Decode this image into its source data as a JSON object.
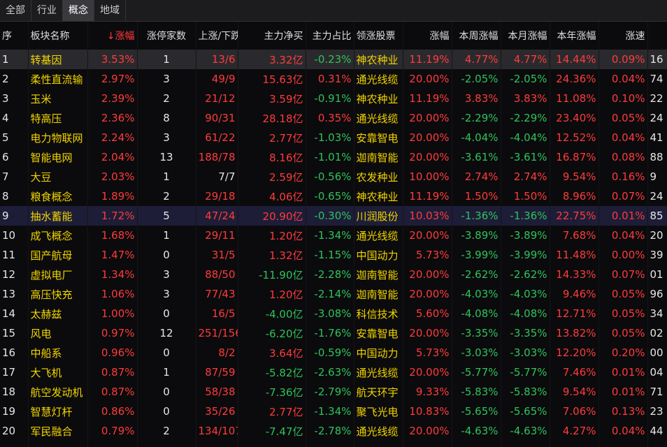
{
  "tabs": [
    "全部",
    "行业",
    "概念",
    "地域"
  ],
  "active_tab": 2,
  "table": {
    "header": [
      "序",
      "板块名称",
      "↓涨幅",
      "涨停家数",
      "上涨/下跌",
      "主力净买",
      "主力占比",
      "领涨股票",
      "涨幅",
      "本周涨幅",
      "本月涨幅",
      "本年涨幅",
      "涨速"
    ],
    "rows": [
      [
        "1",
        "转基因",
        "3.53%",
        "1",
        "13/6",
        "3.32亿",
        "-0.23%",
        "神农种业",
        "11.19%",
        "4.77%",
        "4.77%",
        "14.44%",
        "0.09%",
        "16"
      ],
      [
        "2",
        "柔性直流输",
        "2.97%",
        "3",
        "49/9",
        "15.63亿",
        "0.31%",
        "通光线缆",
        "20.00%",
        "-2.05%",
        "-2.05%",
        "24.36%",
        "0.04%",
        "74"
      ],
      [
        "3",
        "玉米",
        "2.39%",
        "2",
        "21/12",
        "3.59亿",
        "-0.91%",
        "神农种业",
        "11.19%",
        "3.83%",
        "3.83%",
        "11.08%",
        "0.10%",
        "22"
      ],
      [
        "4",
        "特高压",
        "2.36%",
        "8",
        "90/31",
        "28.18亿",
        "0.35%",
        "通光线缆",
        "20.00%",
        "-2.29%",
        "-2.29%",
        "23.40%",
        "0.05%",
        "24"
      ],
      [
        "5",
        "电力物联网",
        "2.24%",
        "3",
        "61/22",
        "2.77亿",
        "-1.03%",
        "安靠智电",
        "20.00%",
        "-4.04%",
        "-4.04%",
        "12.52%",
        "0.04%",
        "41"
      ],
      [
        "6",
        "智能电网",
        "2.04%",
        "13",
        "188/78",
        "8.16亿",
        "-1.01%",
        "迦南智能",
        "20.00%",
        "-3.61%",
        "-3.61%",
        "16.87%",
        "0.08%",
        "88"
      ],
      [
        "7",
        "大豆",
        "2.03%",
        "1",
        "7/7",
        "2.59亿",
        "-0.56%",
        "农发种业",
        "10.00%",
        "2.74%",
        "2.74%",
        "9.54%",
        "0.16%",
        "9"
      ],
      [
        "8",
        "粮食概念",
        "1.89%",
        "2",
        "29/18",
        "4.06亿",
        "-0.65%",
        "神农种业",
        "11.19%",
        "1.50%",
        "1.50%",
        "8.96%",
        "0.07%",
        "24"
      ],
      [
        "9",
        "抽水蓄能",
        "1.72%",
        "5",
        "47/24",
        "20.90亿",
        "-0.30%",
        "川润股份",
        "10.03%",
        "-1.36%",
        "-1.36%",
        "22.75%",
        "0.01%",
        "85"
      ],
      [
        "10",
        "成飞概念",
        "1.68%",
        "1",
        "29/11",
        "1.20亿",
        "-1.34%",
        "通光线缆",
        "20.00%",
        "-3.89%",
        "-3.89%",
        "7.68%",
        "0.04%",
        "20"
      ],
      [
        "11",
        "国产航母",
        "1.47%",
        "0",
        "31/5",
        "1.32亿",
        "-1.15%",
        "中国动力",
        "5.73%",
        "-3.99%",
        "-3.99%",
        "11.48%",
        "0.00%",
        "39"
      ],
      [
        "12",
        "虚拟电厂",
        "1.34%",
        "3",
        "88/50",
        "-11.90亿",
        "-2.28%",
        "迦南智能",
        "20.00%",
        "-2.62%",
        "-2.62%",
        "14.33%",
        "0.07%",
        "01"
      ],
      [
        "13",
        "高压快充",
        "1.06%",
        "3",
        "77/43",
        "1.20亿",
        "-2.14%",
        "迦南智能",
        "20.00%",
        "-4.03%",
        "-4.03%",
        "9.46%",
        "0.05%",
        "96"
      ],
      [
        "14",
        "太赫兹",
        "1.00%",
        "0",
        "16/5",
        "-4.00亿",
        "-3.08%",
        "科信技术",
        "5.60%",
        "-4.08%",
        "-4.08%",
        "12.71%",
        "0.05%",
        "34"
      ],
      [
        "15",
        "风电",
        "0.97%",
        "12",
        "251/156",
        "-6.20亿",
        "-1.76%",
        "安靠智电",
        "20.00%",
        "-3.35%",
        "-3.35%",
        "13.82%",
        "0.05%",
        "02"
      ],
      [
        "16",
        "中船系",
        "0.96%",
        "0",
        "8/2",
        "3.64亿",
        "-0.59%",
        "中国动力",
        "5.73%",
        "-3.03%",
        "-3.03%",
        "12.20%",
        "0.20%",
        "00"
      ],
      [
        "17",
        "大飞机",
        "0.87%",
        "1",
        "87/59",
        "-5.82亿",
        "-2.63%",
        "通光线缆",
        "20.00%",
        "-5.77%",
        "-5.77%",
        "7.46%",
        "0.01%",
        "04"
      ],
      [
        "18",
        "航空发动机",
        "0.87%",
        "0",
        "58/38",
        "-7.36亿",
        "-2.79%",
        "航天环宇",
        "9.33%",
        "-5.83%",
        "-5.83%",
        "9.54%",
        "0.01%",
        "71"
      ],
      [
        "19",
        "智慧灯杆",
        "0.86%",
        "0",
        "35/26",
        "2.77亿",
        "-1.34%",
        "聚飞光电",
        "10.83%",
        "-5.65%",
        "-5.65%",
        "7.06%",
        "0.13%",
        "23"
      ],
      [
        "20",
        "军民融合",
        "0.79%",
        "2",
        "134/107",
        "-7.47亿",
        "-2.78%",
        "通光线缆",
        "20.00%",
        "-4.63%",
        "-4.63%",
        "4.27%",
        "0.04%",
        "44"
      ]
    ]
  }
}
